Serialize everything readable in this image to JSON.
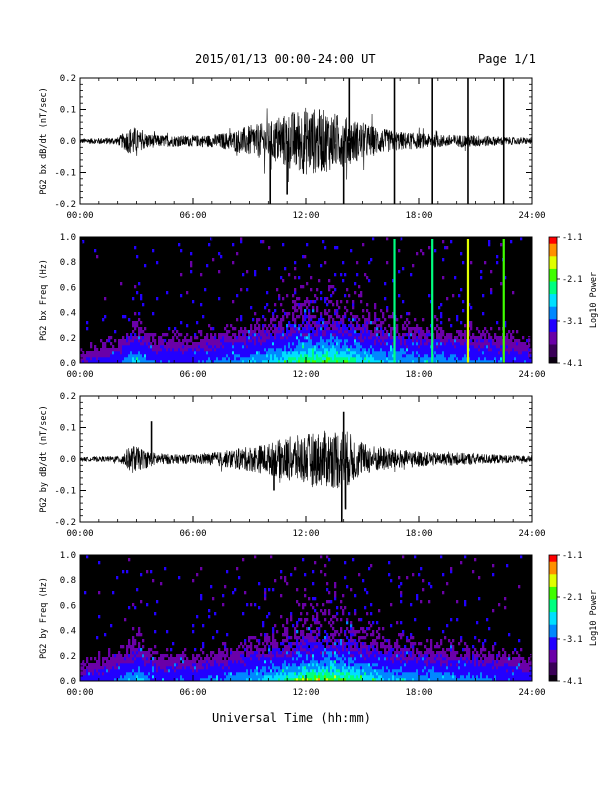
{
  "header": {
    "title": "2015/01/13  00:00-24:00 UT",
    "page": "Page 1/1"
  },
  "xlabel": "Universal Time (hh:mm)",
  "colors": {
    "trace": "#000000",
    "spectrogram_background": "#000000",
    "colormap": [
      "#0a0010",
      "#3a0058",
      "#6a00a8",
      "#2200ff",
      "#0088ff",
      "#00e0ff",
      "#00ff80",
      "#40ff00",
      "#e0ff00",
      "#ff9000",
      "#ff0000"
    ]
  },
  "chart_data": [
    {
      "type": "line",
      "ylabel": "PG2 bx dB/dt (nT/sec)",
      "xlim": [
        0,
        24
      ],
      "xticks": [
        "00:00",
        "06:00",
        "12:00",
        "18:00",
        "24:00"
      ],
      "ylim": [
        -0.2,
        0.2
      ],
      "yticks": [
        "-0.2",
        "-0.1",
        "0.0",
        "0.1",
        "0.2"
      ],
      "envelope_hours": [
        0,
        1,
        2,
        2.8,
        3.2,
        4,
        5,
        6,
        7,
        8,
        9,
        10,
        11,
        12,
        13,
        14,
        15,
        16,
        17,
        18,
        19,
        20,
        21,
        22,
        23,
        24
      ],
      "envelope_amplitude": [
        0.008,
        0.01,
        0.012,
        0.05,
        0.03,
        0.02,
        0.018,
        0.018,
        0.02,
        0.03,
        0.05,
        0.06,
        0.09,
        0.11,
        0.1,
        0.08,
        0.06,
        0.04,
        0.03,
        0.025,
        0.02,
        0.02,
        0.02,
        0.015,
        0.012,
        0.01
      ],
      "spikes": [
        {
          "x": 10.1,
          "y": -0.2
        },
        {
          "x": 11.0,
          "y": -0.17
        },
        {
          "x": 14.0,
          "y": -0.2
        },
        {
          "x": 14.3,
          "y": 0.2
        },
        {
          "x": 16.7,
          "y": 0.2
        },
        {
          "x": 16.7,
          "y": -0.2
        },
        {
          "x": 18.7,
          "y": 0.2
        },
        {
          "x": 18.7,
          "y": -0.2
        },
        {
          "x": 20.6,
          "y": 0.2
        },
        {
          "x": 20.6,
          "y": -0.2
        },
        {
          "x": 22.5,
          "y": 0.2
        },
        {
          "x": 22.5,
          "y": -0.2
        }
      ]
    },
    {
      "type": "heatmap",
      "ylabel": "PG2 bx Freq (Hz)",
      "xlim": [
        0,
        24
      ],
      "xticks": [
        "00:00",
        "06:00",
        "12:00",
        "18:00",
        "24:00"
      ],
      "ylim": [
        0,
        1
      ],
      "yticks": [
        "0.0",
        "0.2",
        "0.4",
        "0.6",
        "0.8",
        "1.0"
      ],
      "colorbar": {
        "label": "Log10 Power",
        "ticks": [
          "-1.1",
          "-2.1",
          "-3.1",
          "-4.1"
        ],
        "range": [
          -4.1,
          -1.1
        ]
      },
      "activity_hours": [
        0,
        2,
        3,
        4,
        6,
        8,
        10,
        11,
        12,
        13,
        14,
        15,
        16,
        17,
        18,
        19,
        20,
        21,
        22,
        23,
        24
      ],
      "activity_level": [
        0.2,
        0.3,
        0.6,
        0.35,
        0.35,
        0.45,
        0.6,
        0.75,
        0.85,
        0.9,
        0.85,
        0.7,
        0.6,
        0.55,
        0.5,
        0.5,
        0.45,
        0.45,
        0.4,
        0.35,
        0.3
      ],
      "broadband_lines": [
        {
          "x": 16.7,
          "level": 0.55
        },
        {
          "x": 18.7,
          "level": 0.55
        },
        {
          "x": 20.6,
          "level": 0.8
        },
        {
          "x": 22.5,
          "level": 0.65
        }
      ]
    },
    {
      "type": "line",
      "ylabel": "PG2 by dB/dt (nT/sec)",
      "xlim": [
        0,
        24
      ],
      "xticks": [
        "00:00",
        "06:00",
        "12:00",
        "18:00",
        "24:00"
      ],
      "ylim": [
        -0.2,
        0.2
      ],
      "yticks": [
        "-0.2",
        "-0.1",
        "0.0",
        "0.1",
        "0.2"
      ],
      "envelope_hours": [
        0,
        1,
        2,
        2.8,
        3.2,
        4,
        5,
        6,
        7,
        8,
        9,
        10,
        11,
        12,
        13,
        14,
        15,
        16,
        17,
        18,
        19,
        20,
        21,
        22,
        23,
        24
      ],
      "envelope_amplitude": [
        0.006,
        0.008,
        0.01,
        0.045,
        0.035,
        0.02,
        0.015,
        0.015,
        0.02,
        0.03,
        0.04,
        0.05,
        0.07,
        0.08,
        0.09,
        0.1,
        0.05,
        0.04,
        0.03,
        0.025,
        0.02,
        0.02,
        0.018,
        0.015,
        0.012,
        0.01
      ],
      "spikes": [
        {
          "x": 3.8,
          "y": 0.12
        },
        {
          "x": 10.3,
          "y": -0.1
        },
        {
          "x": 13.9,
          "y": -0.2
        },
        {
          "x": 14.0,
          "y": 0.15
        },
        {
          "x": 14.1,
          "y": -0.16
        }
      ]
    },
    {
      "type": "heatmap",
      "ylabel": "PG2 by Freq (Hz)",
      "xlim": [
        0,
        24
      ],
      "xticks": [
        "00:00",
        "06:00",
        "12:00",
        "18:00",
        "24:00"
      ],
      "ylim": [
        0,
        1
      ],
      "yticks": [
        "0.0",
        "0.2",
        "0.4",
        "0.6",
        "0.8",
        "1.0"
      ],
      "colorbar": {
        "label": "Log10 Power",
        "ticks": [
          "-1.1",
          "-2.1",
          "-3.1",
          "-4.1"
        ],
        "range": [
          -4.1,
          -1.1
        ]
      },
      "activity_hours": [
        0,
        2,
        3,
        4,
        6,
        8,
        10,
        11,
        12,
        13,
        14,
        15,
        16,
        17,
        18,
        19,
        20,
        21,
        22,
        23,
        24
      ],
      "activity_level": [
        0.25,
        0.35,
        0.6,
        0.35,
        0.35,
        0.45,
        0.6,
        0.75,
        0.9,
        0.95,
        0.9,
        0.75,
        0.6,
        0.55,
        0.5,
        0.5,
        0.45,
        0.45,
        0.4,
        0.35,
        0.3
      ],
      "broadband_lines": []
    }
  ]
}
